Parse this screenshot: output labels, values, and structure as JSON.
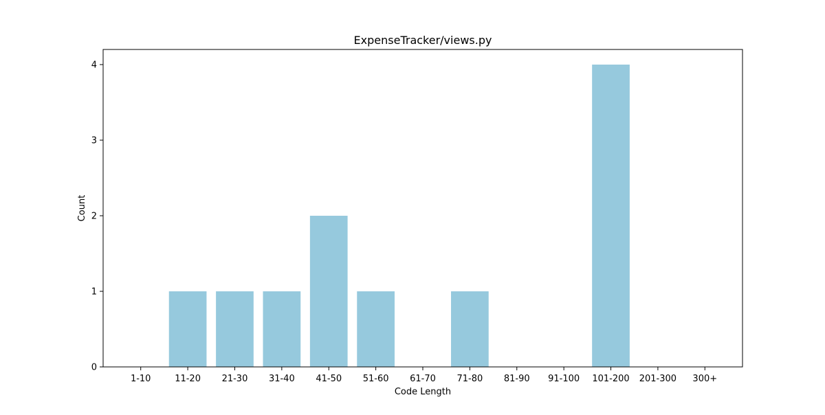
{
  "chart_data": {
    "type": "bar",
    "title": "ExpenseTracker/views.py",
    "xlabel": "Code Length",
    "ylabel": "Count",
    "categories": [
      "1-10",
      "11-20",
      "21-30",
      "31-40",
      "41-50",
      "51-60",
      "61-70",
      "71-80",
      "81-90",
      "91-100",
      "101-200",
      "201-300",
      "300+"
    ],
    "values": [
      0,
      1,
      1,
      1,
      2,
      1,
      0,
      1,
      0,
      0,
      4,
      0,
      0
    ],
    "ylim": [
      0,
      4.2
    ],
    "yticks": [
      0,
      1,
      2,
      3,
      4
    ],
    "grid": false,
    "bar_color": "#96c9dd"
  }
}
